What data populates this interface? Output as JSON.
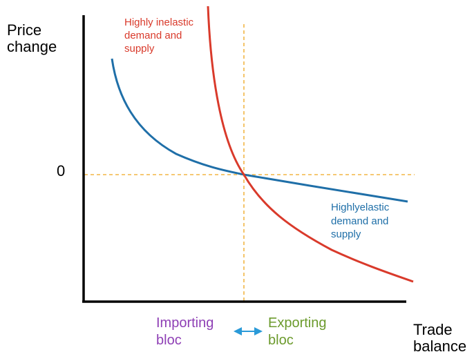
{
  "axes": {
    "y_label": "Price\nchange",
    "zero_label": "0",
    "x_label": "Trade\nbalance"
  },
  "curves": {
    "inelastic": {
      "label": "Highly inelastic\ndemand and\nsupply",
      "color": "#d93a2b"
    },
    "elastic": {
      "label": "Highlyelastic\ndemand and\nsupply",
      "color": "#1f6fa8"
    }
  },
  "blocs": {
    "importing": {
      "label": "Importing\nbloc",
      "color": "#8e3fb5"
    },
    "exporting": {
      "label": "Exporting\nbloc",
      "color": "#6b9a2c"
    }
  },
  "colors": {
    "axis": "#000000",
    "reference_line": "#f2b544",
    "arrow": "#2a9ad8"
  }
}
